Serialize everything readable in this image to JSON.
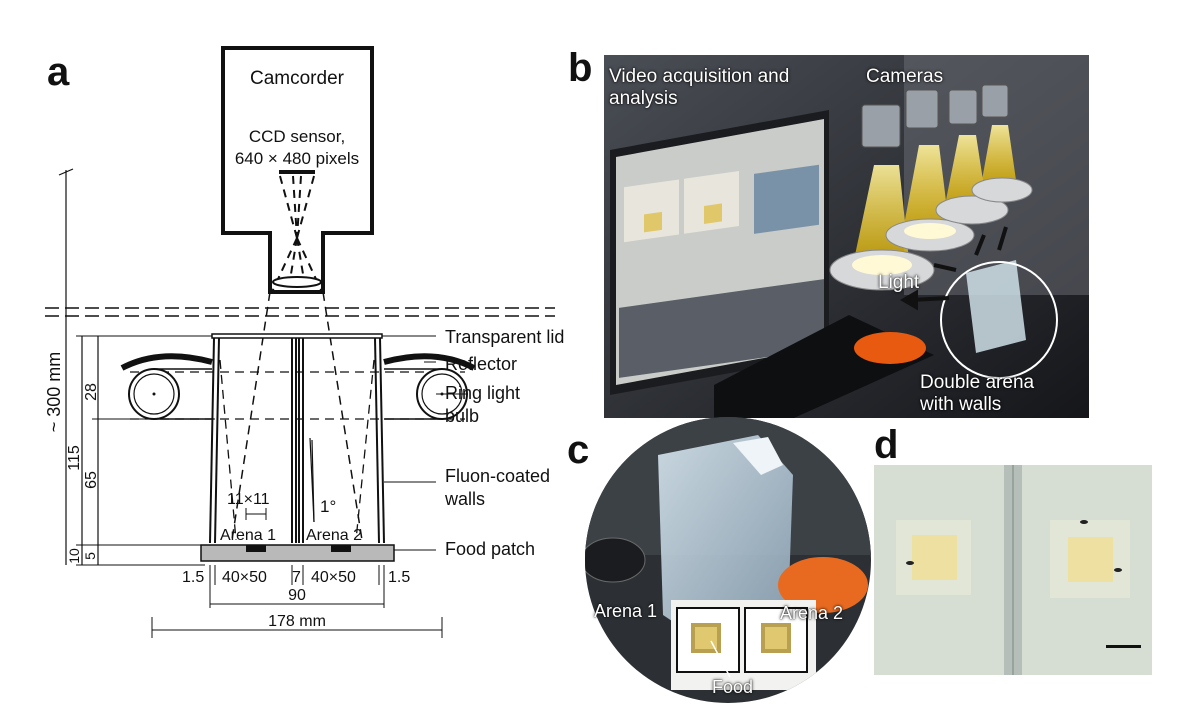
{
  "panels": {
    "a": {
      "letter": "a",
      "camcorder": "Camcorder",
      "ccd_line1": "CCD sensor,",
      "ccd_line2": "640 × 480 pixels",
      "height": "~ 300 mm",
      "transparent_lid": "Transparent lid",
      "reflector": "Reflector",
      "ring_light_1": "Ring light",
      "ring_light_2": "bulb",
      "fluon_1": "Fluon-coated",
      "fluon_2": "walls",
      "food_patch": "Food patch",
      "patch_size": "11×11",
      "angle": "1°",
      "arena1": "Arena 1",
      "arena2": "Arena 2",
      "dim_28": "28",
      "dim_115": "115",
      "dim_65": "65",
      "dim_10": "10",
      "dim_5": "5",
      "bottom_1_5_left": "1.5",
      "bottom_40x50_left": "40×50",
      "bottom_7": "7",
      "bottom_40x50_right": "40×50",
      "bottom_1_5_right": "1.5",
      "dim_90": "90",
      "dim_178": "178 mm"
    },
    "b": {
      "letter": "b",
      "video_1": "Video acquisition and",
      "video_2": "analysis",
      "cameras": "Cameras",
      "light": "Light",
      "double_1": "Double arena",
      "double_2": "with walls"
    },
    "c": {
      "letter": "c",
      "arena1": "Arena 1",
      "arena2": "Arena 2",
      "food": "Food"
    },
    "d": {
      "letter": "d"
    }
  }
}
